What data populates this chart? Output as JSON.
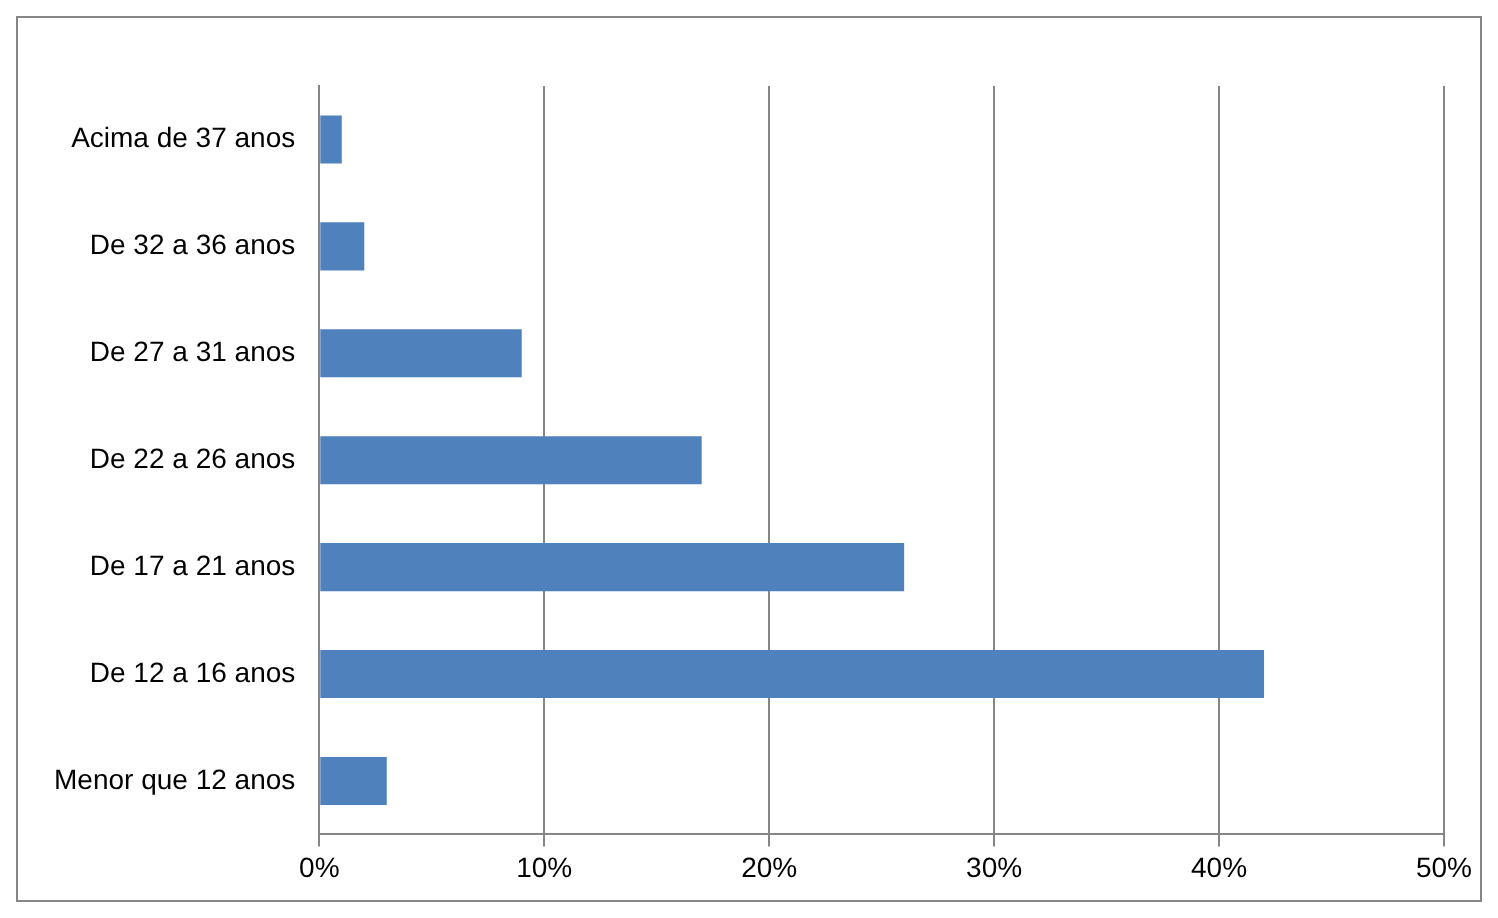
{
  "chart_data": {
    "type": "bar",
    "orientation": "horizontal",
    "categories": [
      "Acima de 37 anos",
      "De 32 a 36 anos",
      "De 27 a 31 anos",
      "De 22 a 26 anos",
      "De 17 a 21 anos",
      "De 12 a 16 anos",
      "Menor que 12 anos"
    ],
    "values": [
      1,
      2,
      9,
      17,
      26,
      42,
      3
    ],
    "color": "#4f81bd",
    "xlim": [
      0,
      50
    ],
    "xticks": [
      {
        "value": 0,
        "label": "0%"
      },
      {
        "value": 10,
        "label": "10%"
      },
      {
        "value": 20,
        "label": "20%"
      },
      {
        "value": 30,
        "label": "30%"
      },
      {
        "value": 40,
        "label": "40%"
      },
      {
        "value": 50,
        "label": "50%"
      }
    ],
    "grid": "x",
    "legend": false
  }
}
